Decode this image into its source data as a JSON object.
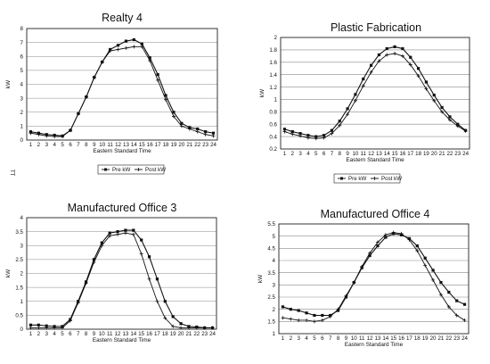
{
  "figure": {
    "margin_mark": "TT"
  },
  "chart_data": [
    {
      "type": "line",
      "title": "Realty 4",
      "xlabel": "Eastern Standard Time",
      "ylabel": "kW",
      "ylim": [
        0,
        8
      ],
      "yticks": [
        "0",
        "1",
        "2",
        "3",
        "4",
        "5",
        "6",
        "7",
        "8"
      ],
      "x": [
        "1",
        "2",
        "3",
        "4",
        "5",
        "6",
        "7",
        "8",
        "9",
        "10",
        "11",
        "12",
        "13",
        "14",
        "15",
        "16",
        "17",
        "18",
        "19",
        "20",
        "21",
        "22",
        "23",
        "24"
      ],
      "grid": true,
      "series": [
        {
          "name": "Pre kW",
          "marker": "square",
          "values": [
            0.6,
            0.5,
            0.4,
            0.35,
            0.3,
            0.7,
            1.9,
            3.1,
            4.5,
            5.6,
            6.5,
            6.8,
            7.1,
            7.2,
            6.9,
            5.9,
            4.7,
            3.2,
            2.0,
            1.2,
            0.9,
            0.8,
            0.6,
            0.5
          ]
        },
        {
          "name": "Post kW",
          "marker": "plus",
          "values": [
            0.5,
            0.4,
            0.3,
            0.25,
            0.25,
            0.7,
            1.9,
            3.1,
            4.5,
            5.6,
            6.4,
            6.5,
            6.6,
            6.7,
            6.7,
            5.7,
            4.3,
            2.9,
            1.7,
            1.0,
            0.8,
            0.6,
            0.4,
            0.3
          ]
        }
      ],
      "legend_position": "bottom"
    },
    {
      "type": "line",
      "title": "Plastic Fabrication",
      "xlabel": "Eastern Standard Time",
      "ylabel": "kW",
      "ylim": [
        0.2,
        2
      ],
      "yticks": [
        "0.2",
        "0.4",
        "0.6",
        "0.8",
        "1",
        "1.2",
        "1.4",
        "1.6",
        "1.8",
        "2"
      ],
      "x": [
        "1",
        "2",
        "3",
        "4",
        "5",
        "6",
        "7",
        "8",
        "9",
        "10",
        "11",
        "12",
        "13",
        "14",
        "15",
        "16",
        "17",
        "18",
        "19",
        "20",
        "21",
        "22",
        "23",
        "24"
      ],
      "grid": true,
      "series": [
        {
          "name": "Pre kW",
          "marker": "square",
          "values": [
            0.52,
            0.48,
            0.45,
            0.42,
            0.4,
            0.42,
            0.5,
            0.65,
            0.85,
            1.08,
            1.33,
            1.55,
            1.72,
            1.82,
            1.85,
            1.82,
            1.68,
            1.5,
            1.28,
            1.07,
            0.87,
            0.72,
            0.6,
            0.5
          ]
        },
        {
          "name": "Post kW",
          "marker": "plus",
          "values": [
            0.48,
            0.44,
            0.41,
            0.38,
            0.37,
            0.38,
            0.45,
            0.58,
            0.76,
            0.98,
            1.22,
            1.44,
            1.62,
            1.72,
            1.74,
            1.7,
            1.56,
            1.38,
            1.17,
            0.98,
            0.8,
            0.67,
            0.57,
            0.49
          ]
        }
      ],
      "legend_position": "bottom"
    },
    {
      "type": "line",
      "title": "Manufactured Office 3",
      "xlabel": "Eastern Standard Time",
      "ylabel": "kW",
      "ylim": [
        0,
        4
      ],
      "yticks": [
        "0",
        "0.5",
        "1",
        "1.5",
        "2",
        "2.5",
        "3",
        "3.5",
        "4"
      ],
      "x": [
        "1",
        "2",
        "3",
        "4",
        "5",
        "6",
        "7",
        "8",
        "9",
        "10",
        "11",
        "12",
        "13",
        "14",
        "15",
        "16",
        "17",
        "18",
        "19",
        "20",
        "21",
        "22",
        "23",
        "24"
      ],
      "grid": true,
      "series": [
        {
          "name": "Pre kW",
          "marker": "square",
          "values": [
            0.15,
            0.15,
            0.12,
            0.1,
            0.1,
            0.35,
            1.0,
            1.7,
            2.5,
            3.1,
            3.45,
            3.5,
            3.55,
            3.55,
            3.2,
            2.6,
            1.8,
            1.0,
            0.45,
            0.2,
            0.1,
            0.08,
            0.05,
            0.05
          ]
        },
        {
          "name": "Post kW",
          "marker": "plus",
          "values": [
            0.05,
            0.05,
            0.05,
            0.05,
            0.05,
            0.3,
            0.95,
            1.65,
            2.4,
            3.0,
            3.35,
            3.4,
            3.45,
            3.4,
            2.7,
            1.8,
            1.0,
            0.4,
            0.1,
            0.05,
            0.05,
            0.05,
            0.05,
            0.05
          ]
        }
      ]
    },
    {
      "type": "line",
      "title": "Manufactured Office 4",
      "xlabel": "Eastern Standard Time",
      "ylabel": "kW",
      "ylim": [
        1,
        5.5
      ],
      "yticks": [
        "1",
        "1.5",
        "2",
        "2.5",
        "3",
        "3.5",
        "4",
        "4.5",
        "5",
        "5.5"
      ],
      "x": [
        "1",
        "2",
        "3",
        "4",
        "5",
        "6",
        "7",
        "8",
        "9",
        "10",
        "11",
        "12",
        "13",
        "14",
        "15",
        "16",
        "17",
        "18",
        "19",
        "20",
        "21",
        "22",
        "23",
        "24"
      ],
      "grid": true,
      "series": [
        {
          "name": "Pre kW",
          "marker": "square",
          "values": [
            2.1,
            2.0,
            1.95,
            1.85,
            1.75,
            1.75,
            1.75,
            1.95,
            2.5,
            3.1,
            3.7,
            4.2,
            4.6,
            4.95,
            5.1,
            5.05,
            4.9,
            4.6,
            4.1,
            3.6,
            3.1,
            2.7,
            2.35,
            2.2
          ]
        },
        {
          "name": "Post kW",
          "marker": "plus",
          "values": [
            1.65,
            1.6,
            1.55,
            1.55,
            1.5,
            1.55,
            1.7,
            2.0,
            2.55,
            3.1,
            3.75,
            4.3,
            4.75,
            5.05,
            5.15,
            5.1,
            4.85,
            4.4,
            3.8,
            3.2,
            2.6,
            2.1,
            1.75,
            1.55
          ]
        }
      ]
    }
  ]
}
